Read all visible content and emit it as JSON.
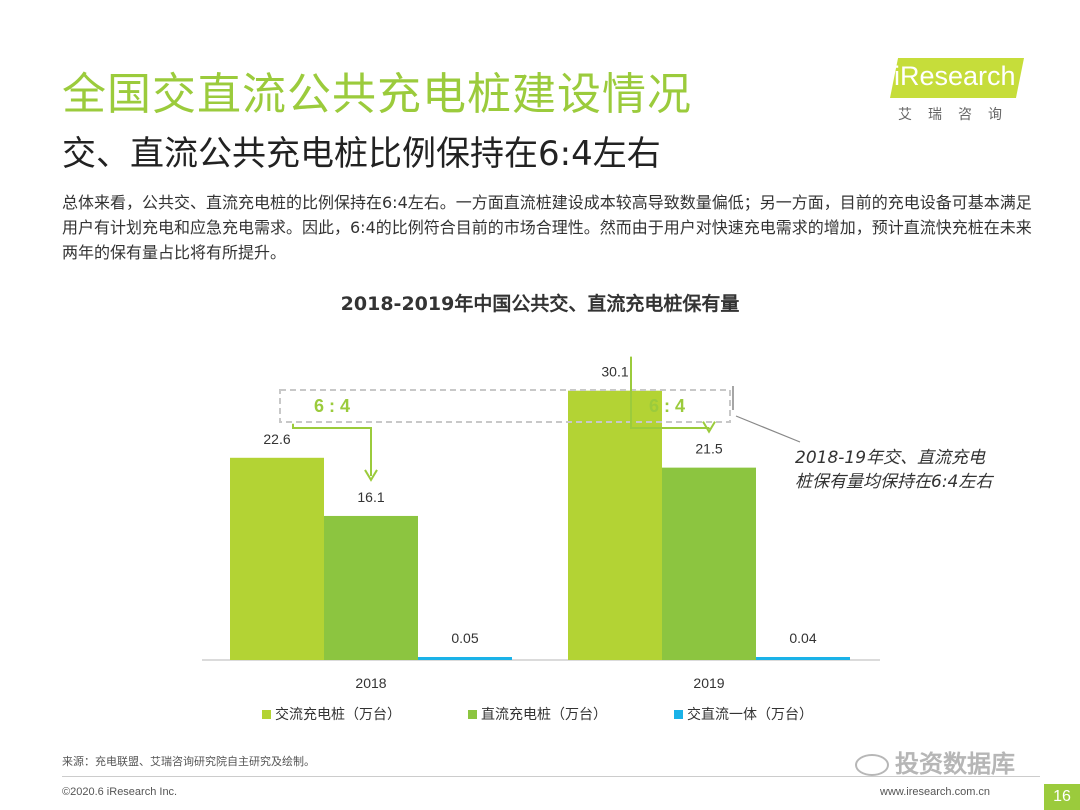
{
  "page": {
    "title": "全国交直流公共充电桩建设情况",
    "subtitle": "交、直流公共充电桩比例保持在6:4左右",
    "description": "总体来看，公共交、直流充电桩的比例保持在6:4左右。一方面直流桩建设成本较高导致数量偏低；另一方面，目前的充电设备可基本满足用户有计划充电和应急充电需求。因此，6:4的比例符合目前的市场合理性。然而由于用户对快速充电需求的增加，预计直流快充桩在未来两年的保有量占比将有所提升。",
    "source": "来源：充电联盟、艾瑞咨询研究院自主研究及绘制。",
    "copyright": "©2020.6 iResearch Inc.",
    "website": "www.iresearch.com.cn",
    "page_number": "16",
    "logo_text": "iResearch",
    "logo_cn": "艾瑞咨询",
    "watermark": "投资数据库"
  },
  "colors": {
    "title": "#9bcb3c",
    "ac": "#b3d334",
    "dc": "#8cc540",
    "integrated": "#1ab2e8",
    "bracket": "#9bcb3c"
  },
  "chart_data": {
    "type": "bar",
    "title": "2018-2019年中国公共交、直流充电桩保有量",
    "categories": [
      "2018",
      "2019"
    ],
    "series": [
      {
        "name": "交流充电桩（万台）",
        "values": [
          22.6,
          30.1
        ],
        "labels": [
          "22.6",
          "30.1"
        ]
      },
      {
        "name": "直流充电桩（万台）",
        "values": [
          16.1,
          21.5
        ],
        "labels": [
          "16.1",
          "21.5"
        ]
      },
      {
        "name": "交直流一体（万台）",
        "values": [
          0.05,
          0.04
        ],
        "labels": [
          "0.05",
          "0.04"
        ]
      }
    ],
    "ratio_labels": [
      "6 : 4",
      "6 : 4"
    ],
    "annotation": [
      "2018-19年交、直流充电",
      "桩保有量均保持在6:4左右"
    ],
    "ylim": [
      0,
      38
    ],
    "legend_position": "bottom"
  }
}
